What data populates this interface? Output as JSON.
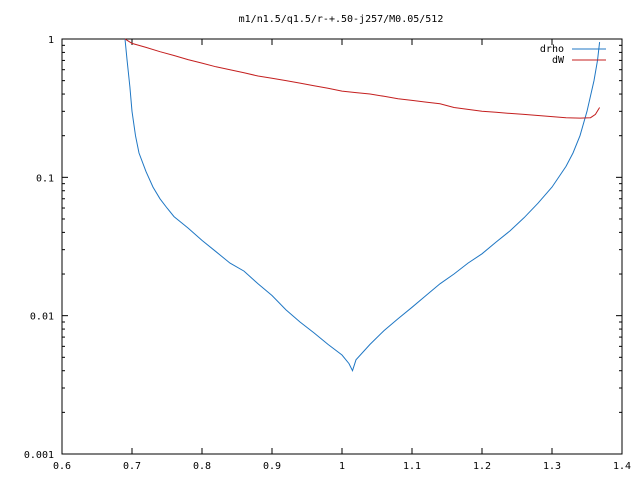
{
  "chart_data": {
    "type": "line",
    "title": "m1/n1.5/q1.5/r-+.50-j257/M0.05/512",
    "xlabel": "",
    "ylabel": "",
    "xlim": [
      0.6,
      1.4
    ],
    "ylim": [
      0.001,
      1
    ],
    "yscale": "log",
    "grid": false,
    "legend": "top-right",
    "x_ticks": [
      "0.6",
      "0.7",
      "0.8",
      "0.9",
      "1",
      "1.1",
      "1.2",
      "1.3",
      "1.4"
    ],
    "y_ticks": [
      "0.001",
      "0.01",
      "0.1",
      "1"
    ],
    "series": [
      {
        "name": "drho",
        "color": "#1f77c4",
        "x": [
          0.69,
          0.693,
          0.697,
          0.7,
          0.705,
          0.71,
          0.72,
          0.73,
          0.74,
          0.75,
          0.76,
          0.78,
          0.8,
          0.82,
          0.84,
          0.86,
          0.88,
          0.9,
          0.92,
          0.94,
          0.96,
          0.98,
          1.0,
          1.01,
          1.015,
          1.02,
          1.04,
          1.06,
          1.08,
          1.1,
          1.12,
          1.14,
          1.16,
          1.18,
          1.2,
          1.22,
          1.24,
          1.26,
          1.28,
          1.3,
          1.32,
          1.33,
          1.34,
          1.35,
          1.36,
          1.365,
          1.368
        ],
        "y": [
          1.0,
          0.7,
          0.45,
          0.3,
          0.2,
          0.15,
          0.11,
          0.085,
          0.07,
          0.06,
          0.052,
          0.043,
          0.035,
          0.029,
          0.024,
          0.021,
          0.017,
          0.014,
          0.011,
          0.009,
          0.0075,
          0.0062,
          0.0052,
          0.0045,
          0.004,
          0.0048,
          0.0062,
          0.0078,
          0.0095,
          0.0115,
          0.014,
          0.017,
          0.02,
          0.024,
          0.028,
          0.034,
          0.041,
          0.051,
          0.065,
          0.085,
          0.12,
          0.15,
          0.2,
          0.3,
          0.5,
          0.7,
          0.95
        ]
      },
      {
        "name": "dW",
        "color": "#c41f1f",
        "x": [
          0.69,
          0.7,
          0.72,
          0.74,
          0.76,
          0.78,
          0.8,
          0.82,
          0.84,
          0.86,
          0.88,
          0.9,
          0.92,
          0.94,
          0.96,
          0.98,
          1.0,
          1.02,
          1.04,
          1.06,
          1.08,
          1.1,
          1.12,
          1.14,
          1.15,
          1.16,
          1.18,
          1.2,
          1.22,
          1.24,
          1.26,
          1.28,
          1.3,
          1.32,
          1.34,
          1.355,
          1.362,
          1.368
        ],
        "y": [
          1.0,
          0.93,
          0.87,
          0.81,
          0.76,
          0.71,
          0.67,
          0.63,
          0.6,
          0.57,
          0.54,
          0.52,
          0.5,
          0.48,
          0.46,
          0.44,
          0.42,
          0.41,
          0.4,
          0.385,
          0.37,
          0.36,
          0.35,
          0.34,
          0.33,
          0.32,
          0.31,
          0.3,
          0.295,
          0.29,
          0.285,
          0.28,
          0.275,
          0.27,
          0.268,
          0.27,
          0.285,
          0.32
        ]
      }
    ]
  }
}
